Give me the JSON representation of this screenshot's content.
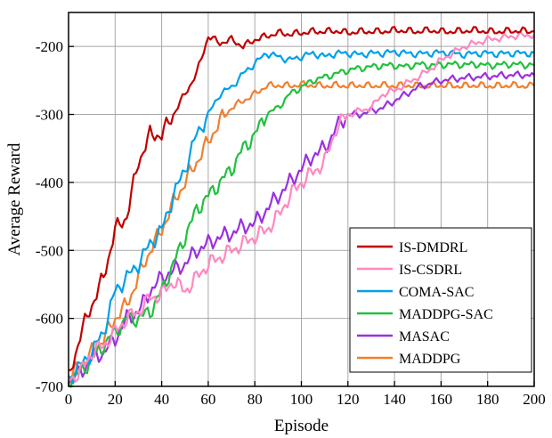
{
  "chart_data": {
    "type": "line",
    "title": "",
    "xlabel": "Episode",
    "ylabel": "Average Reward",
    "xlim": [
      0,
      200
    ],
    "ylim": [
      -700,
      -150
    ],
    "xticks": [
      0,
      20,
      40,
      60,
      80,
      100,
      120,
      140,
      160,
      180,
      200
    ],
    "yticks": [
      -700,
      -600,
      -500,
      -400,
      -300,
      -200
    ],
    "grid": true,
    "legend_position": "lower-right",
    "x": [
      0,
      5,
      10,
      15,
      20,
      25,
      30,
      35,
      40,
      45,
      50,
      55,
      60,
      65,
      70,
      75,
      80,
      85,
      90,
      95,
      100,
      105,
      110,
      115,
      120,
      125,
      130,
      135,
      140,
      145,
      150,
      155,
      160,
      165,
      170,
      175,
      180,
      185,
      190,
      195,
      200
    ],
    "series": [
      {
        "name": "IS-DMDRL",
        "color": "#c00000",
        "values": [
          -690,
          -625,
          -580,
          -540,
          -470,
          -450,
          -370,
          -330,
          -330,
          -300,
          -270,
          -240,
          -185,
          -195,
          -190,
          -200,
          -190,
          -185,
          -180,
          -182,
          -180,
          -178,
          -178,
          -177,
          -180,
          -178,
          -178,
          -178,
          -176,
          -177,
          -178,
          -176,
          -178,
          -178,
          -177,
          -176,
          -178,
          -178,
          -177,
          -177,
          -178
        ]
      },
      {
        "name": "IS-CSDRL",
        "color": "#ff88c0",
        "values": [
          -690,
          -680,
          -650,
          -640,
          -620,
          -600,
          -590,
          -570,
          -565,
          -545,
          -560,
          -540,
          -520,
          -510,
          -500,
          -490,
          -480,
          -470,
          -450,
          -420,
          -400,
          -385,
          -370,
          -320,
          -300,
          -295,
          -290,
          -270,
          -265,
          -255,
          -245,
          -235,
          -220,
          -210,
          -200,
          -195,
          -190,
          -188,
          -185,
          -184,
          -183
        ]
      },
      {
        "name": "COMA-SAC",
        "color": "#00a0e8",
        "values": [
          -690,
          -670,
          -650,
          -620,
          -560,
          -540,
          -520,
          -490,
          -470,
          -420,
          -380,
          -330,
          -300,
          -270,
          -260,
          -240,
          -225,
          -210,
          -215,
          -220,
          -215,
          -210,
          -215,
          -210,
          -210,
          -212,
          -210,
          -210,
          -208,
          -210,
          -211,
          -210,
          -209,
          -210,
          -212,
          -210,
          -210,
          -211,
          -210,
          -210,
          -210
        ]
      },
      {
        "name": "MADDPG-SAC",
        "color": "#22c040",
        "values": [
          -690,
          -680,
          -660,
          -640,
          -620,
          -600,
          -600,
          -590,
          -560,
          -520,
          -480,
          -440,
          -420,
          -400,
          -380,
          -350,
          -330,
          -300,
          -290,
          -270,
          -260,
          -250,
          -245,
          -240,
          -235,
          -232,
          -230,
          -228,
          -228,
          -230,
          -226,
          -228,
          -227,
          -226,
          -227,
          -226,
          -228,
          -227,
          -226,
          -227,
          -227
        ]
      },
      {
        "name": "MASAC",
        "color": "#9a30e0",
        "values": [
          -690,
          -680,
          -660,
          -650,
          -630,
          -600,
          -590,
          -560,
          -540,
          -530,
          -520,
          -500,
          -490,
          -480,
          -475,
          -465,
          -460,
          -440,
          -420,
          -400,
          -380,
          -360,
          -350,
          -320,
          -300,
          -300,
          -295,
          -290,
          -280,
          -270,
          -260,
          -255,
          -250,
          -248,
          -246,
          -245,
          -244,
          -243,
          -242,
          -242,
          -242
        ]
      },
      {
        "name": "MADDPG",
        "color": "#f08030",
        "values": [
          -690,
          -670,
          -650,
          -630,
          -600,
          -580,
          -540,
          -500,
          -470,
          -430,
          -400,
          -370,
          -340,
          -310,
          -290,
          -280,
          -270,
          -258,
          -257,
          -258,
          -256,
          -257,
          -258,
          -257,
          -258,
          -257,
          -258,
          -257,
          -258,
          -257,
          -258,
          -258,
          -257,
          -258,
          -258,
          -257,
          -258,
          -258,
          -257,
          -258,
          -258
        ]
      }
    ]
  }
}
